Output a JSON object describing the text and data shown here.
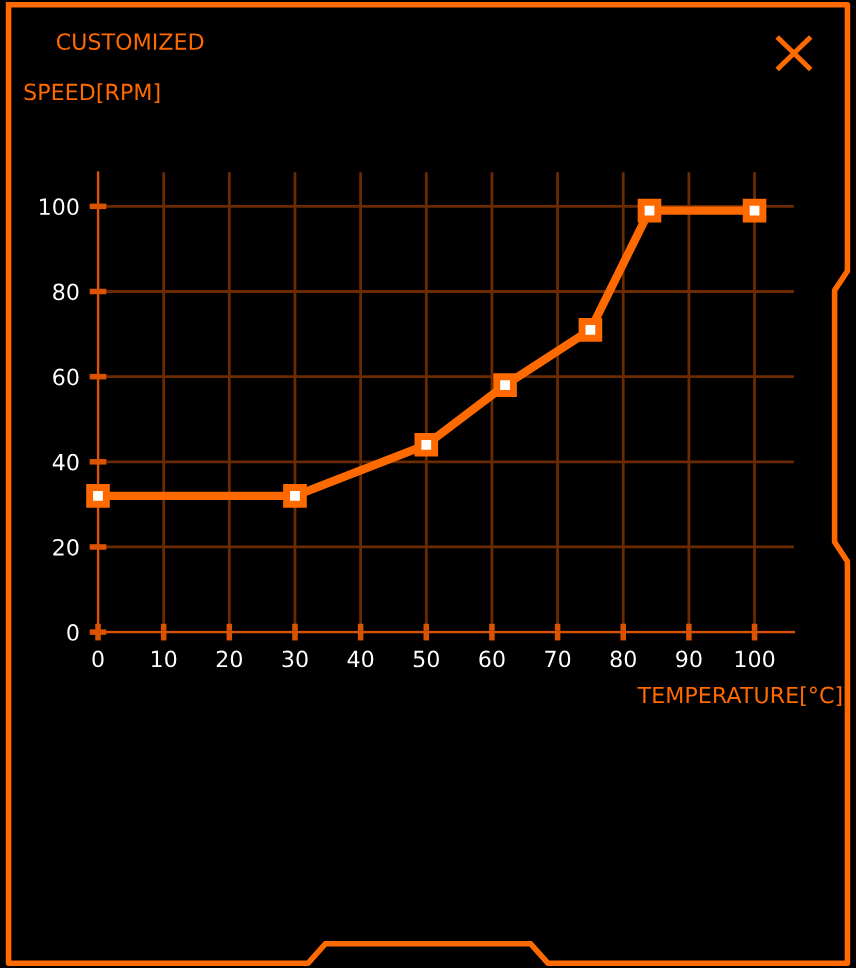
{
  "chart_data": {
    "type": "line",
    "title": "CUSTOMIZED",
    "ylabel": "SPEED[RPM]",
    "xlabel": "TEMPERATURE[°C]",
    "x": [
      0,
      30,
      50,
      62,
      75,
      84,
      100
    ],
    "series": [
      {
        "color": "#ff6a00",
        "values": [
          32,
          32,
          44,
          58,
          71,
          99,
          99
        ]
      }
    ],
    "xlim": [
      0,
      106
    ],
    "ylim": [
      0,
      108
    ],
    "xticks": [
      0,
      10,
      20,
      30,
      40,
      50,
      60,
      70,
      80,
      90,
      100
    ],
    "yticks": [
      0,
      20,
      40,
      60,
      80,
      100
    ],
    "grid": true,
    "marker": "square",
    "line_style": "solid",
    "legend": false
  }
}
